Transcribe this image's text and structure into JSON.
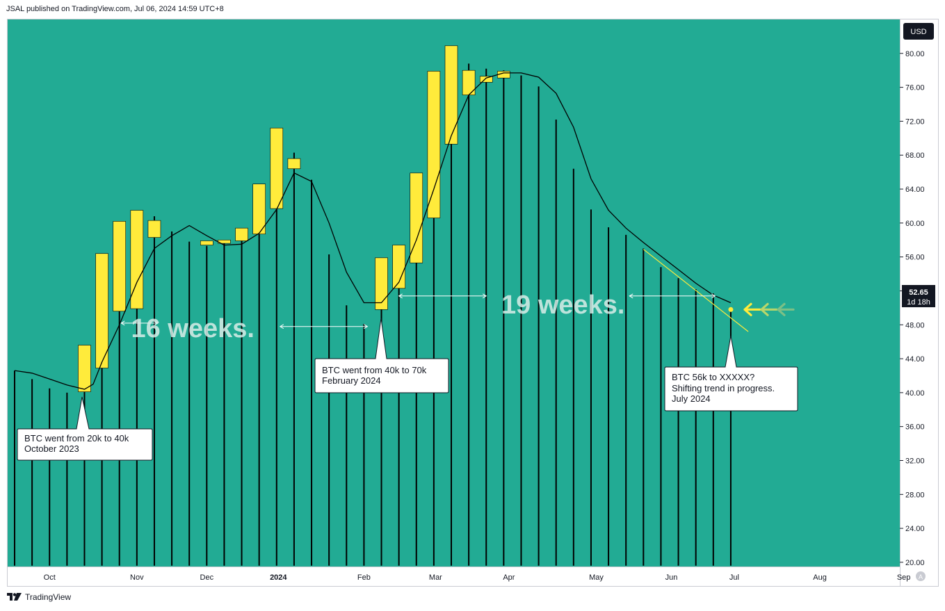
{
  "header": {
    "published": "JSAL published on TradingView.com, Jul 06, 2024 14:59 UTC+8"
  },
  "footer": {
    "brand": "TradingView"
  },
  "scale": {
    "currency": "USD",
    "last_price": "52.65",
    "countdown": "1d 18h",
    "auto_label": "A"
  },
  "colors": {
    "background": "#22ab94",
    "candle": "#ffeb3b",
    "wick": "#000000",
    "ma": "#000000",
    "trendline": "#ffeb3b",
    "arrow1": "#ffeb3b",
    "arrow2": "#b8d66a",
    "arrow3": "#7cc086"
  },
  "chart_data": {
    "type": "candlestick",
    "y_range": [
      19.5,
      84
    ],
    "y_ticks": [
      "20.00",
      "24.00",
      "28.00",
      "32.00",
      "36.00",
      "40.00",
      "44.00",
      "48.00",
      "52.00",
      "56.00",
      "60.00",
      "64.00",
      "68.00",
      "72.00",
      "76.00",
      "80.00"
    ],
    "x_labels": [
      {
        "label": "Oct",
        "bar": 2
      },
      {
        "label": "Nov",
        "bar": 7
      },
      {
        "label": "Dec",
        "bar": 11
      },
      {
        "label": "2024",
        "bar": 15.1,
        "bold": true
      },
      {
        "label": "Feb",
        "bar": 20
      },
      {
        "label": "Mar",
        "bar": 24.1
      },
      {
        "label": "Apr",
        "bar": 28.3
      },
      {
        "label": "May",
        "bar": 33.3
      },
      {
        "label": "Jun",
        "bar": 37.6
      },
      {
        "label": "Jul",
        "bar": 41.2
      },
      {
        "label": "Aug",
        "bar": 46.1
      },
      {
        "label": "Sep",
        "bar": 50.9
      }
    ],
    "candles": [
      {
        "body": null,
        "high": 42.6
      },
      {
        "body": null,
        "high": 41.6
      },
      {
        "body": null,
        "high": 40.5
      },
      {
        "body": null,
        "high": 40.0
      },
      {
        "body": [
          40.1,
          45.6
        ],
        "high": 41.8
      },
      {
        "body": [
          42.9,
          56.4
        ],
        "high": 47.8
      },
      {
        "body": [
          49.6,
          60.2
        ],
        "high": 54.9
      },
      {
        "body": [
          49.9,
          61.5
        ],
        "high": 59.4
      },
      {
        "body": [
          58.3,
          60.3
        ],
        "high": 60.8
      },
      {
        "body": null,
        "high": 59.0
      },
      {
        "body": null,
        "high": 57.8
      },
      {
        "body": [
          57.4,
          57.9
        ],
        "high": 57.3
      },
      {
        "body": [
          57.6,
          58.0
        ],
        "high": 57.8
      },
      {
        "body": [
          57.9,
          59.4
        ],
        "high": 58.6
      },
      {
        "body": [
          58.7,
          64.6
        ],
        "high": 61.0
      },
      {
        "body": [
          61.7,
          71.2
        ],
        "high": 65.6
      },
      {
        "body": [
          66.4,
          67.6
        ],
        "high": 68.3
      },
      {
        "body": null,
        "high": 65.1
      },
      {
        "body": null,
        "high": 56.3
      },
      {
        "body": null,
        "high": 50.3
      },
      {
        "body": null,
        "high": 48.1
      },
      {
        "body": [
          49.8,
          55.9
        ],
        "high": 50.7
      },
      {
        "body": [
          52.3,
          57.4
        ],
        "high": 54.6
      },
      {
        "body": [
          55.3,
          65.9
        ],
        "high": 59.6
      },
      {
        "body": [
          60.6,
          77.9
        ],
        "high": 67.9
      },
      {
        "body": [
          69.3,
          80.9
        ],
        "high": 75.6
      },
      {
        "body": [
          75.1,
          78.0
        ],
        "high": 78.8
      },
      {
        "body": [
          76.6,
          77.3
        ],
        "high": 78.2
      },
      {
        "body": [
          77.1,
          77.9
        ],
        "high": 78.0
      },
      {
        "body": null,
        "high": 77.4
      },
      {
        "body": null,
        "high": 76.1
      },
      {
        "body": null,
        "high": 72.2
      },
      {
        "body": null,
        "high": 66.4
      },
      {
        "body": null,
        "high": 61.6
      },
      {
        "body": null,
        "high": 59.5
      },
      {
        "body": null,
        "high": 58.6
      },
      {
        "body": null,
        "high": 57.0
      },
      {
        "body": null,
        "high": 54.8
      },
      {
        "body": null,
        "high": 53.5
      },
      {
        "body": null,
        "high": 52.2
      },
      {
        "body": null,
        "high": 51.7
      },
      {
        "body": null,
        "high": 49.7
      }
    ],
    "candle_low": 19.6,
    "moving_average": [
      [
        0,
        42.6
      ],
      [
        1,
        42.3
      ],
      [
        2,
        41.6
      ],
      [
        3,
        40.9
      ],
      [
        4,
        40.4
      ],
      [
        4.5,
        41.0
      ],
      [
        5,
        43.6
      ],
      [
        6,
        48.0
      ],
      [
        7,
        53.0
      ],
      [
        8,
        57.0
      ],
      [
        9,
        58.5
      ],
      [
        10,
        59.7
      ],
      [
        11,
        58.5
      ],
      [
        12,
        57.4
      ],
      [
        13,
        57.5
      ],
      [
        14,
        58.8
      ],
      [
        15,
        61.6
      ],
      [
        16,
        65.9
      ],
      [
        17,
        64.9
      ],
      [
        18,
        60.0
      ],
      [
        19,
        54.2
      ],
      [
        20,
        50.6
      ],
      [
        21,
        50.6
      ],
      [
        22,
        53.0
      ],
      [
        23,
        58.0
      ],
      [
        24,
        64.0
      ],
      [
        25,
        70.3
      ],
      [
        26,
        75.1
      ],
      [
        27,
        77.1
      ],
      [
        28,
        77.7
      ],
      [
        29,
        77.7
      ],
      [
        30,
        77.2
      ],
      [
        31,
        75.3
      ],
      [
        32,
        71.3
      ],
      [
        33,
        65.2
      ],
      [
        34,
        61.5
      ],
      [
        35,
        59.4
      ],
      [
        36,
        57.7
      ],
      [
        37,
        56.1
      ],
      [
        38,
        54.5
      ],
      [
        39,
        52.9
      ],
      [
        40,
        51.5
      ],
      [
        41,
        50.6
      ]
    ],
    "trendline": [
      [
        36,
        56.9
      ],
      [
        42,
        47.2
      ]
    ],
    "last_price": 52.65,
    "last_close_marker": [
      41,
      49.8
    ],
    "annotations": [
      {
        "text": "16 weeks.",
        "bar": 10.2,
        "price": 47.6
      },
      {
        "text": "19 weeks.",
        "bar": 31.4,
        "price": 50.4
      }
    ],
    "spans": [
      {
        "from": 6.1,
        "to": 8.2,
        "price": 48.2
      },
      {
        "from": 15.2,
        "to": 20.2,
        "price": 47.8
      },
      {
        "from": 22.0,
        "to": 27.0,
        "price": 51.4
      },
      {
        "from": 35.2,
        "to": 40.1,
        "price": 51.4
      }
    ],
    "callouts": [
      {
        "lines": [
          "BTC went from 20k to 40k",
          "October 2023"
        ]
      },
      {
        "lines": [
          "BTC went from 40k to 70k",
          "February 2024"
        ]
      },
      {
        "lines": [
          "BTC 56k to XXXXX?",
          "Shifting trend in progress.",
          "July 2024"
        ]
      }
    ]
  }
}
